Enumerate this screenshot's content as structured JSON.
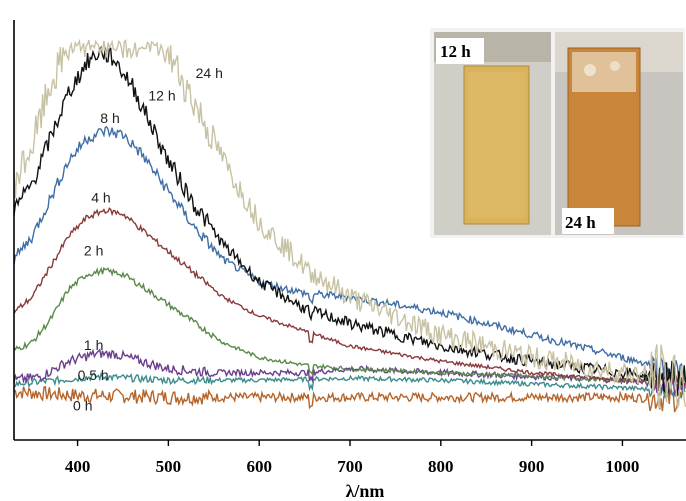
{
  "chart_data": {
    "type": "line",
    "title": "",
    "xlabel": "λ/nm",
    "ylabel": "",
    "xlim": [
      330,
      1070
    ],
    "ylim": [
      0,
      1
    ],
    "x_ticks": [
      400,
      500,
      600,
      700,
      800,
      900,
      1000
    ],
    "grid": false,
    "legend": "none",
    "series": [
      {
        "name": "0 h",
        "color": "#b5652b",
        "noise": 0.012,
        "points": [
          [
            330,
            0.07
          ],
          [
            360,
            0.065
          ],
          [
            400,
            0.06
          ],
          [
            450,
            0.058
          ],
          [
            500,
            0.055
          ],
          [
            600,
            0.055
          ],
          [
            700,
            0.055
          ],
          [
            800,
            0.055
          ],
          [
            900,
            0.055
          ],
          [
            1000,
            0.055
          ],
          [
            1070,
            0.05
          ]
        ]
      },
      {
        "name": "0.5 h",
        "color": "#3d8c8c",
        "noise": 0.006,
        "points": [
          [
            330,
            0.09
          ],
          [
            380,
            0.1
          ],
          [
            420,
            0.11
          ],
          [
            460,
            0.105
          ],
          [
            500,
            0.1
          ],
          [
            600,
            0.1
          ],
          [
            700,
            0.105
          ],
          [
            800,
            0.1
          ],
          [
            900,
            0.09
          ],
          [
            1000,
            0.08
          ],
          [
            1070,
            0.07
          ]
        ]
      },
      {
        "name": "1 h",
        "color": "#6a3e8c",
        "noise": 0.008,
        "points": [
          [
            330,
            0.1
          ],
          [
            360,
            0.11
          ],
          [
            390,
            0.15
          ],
          [
            420,
            0.17
          ],
          [
            440,
            0.17
          ],
          [
            470,
            0.15
          ],
          [
            500,
            0.13
          ],
          [
            550,
            0.12
          ],
          [
            600,
            0.12
          ],
          [
            650,
            0.12
          ],
          [
            700,
            0.13
          ],
          [
            800,
            0.12
          ],
          [
            900,
            0.11
          ],
          [
            1000,
            0.1
          ],
          [
            1070,
            0.08
          ]
        ]
      },
      {
        "name": "2 h",
        "color": "#5a8a4a",
        "noise": 0.005,
        "points": [
          [
            330,
            0.18
          ],
          [
            350,
            0.2
          ],
          [
            370,
            0.26
          ],
          [
            390,
            0.34
          ],
          [
            410,
            0.38
          ],
          [
            430,
            0.39
          ],
          [
            450,
            0.38
          ],
          [
            470,
            0.35
          ],
          [
            500,
            0.3
          ],
          [
            530,
            0.25
          ],
          [
            560,
            0.2
          ],
          [
            600,
            0.16
          ],
          [
            650,
            0.14
          ],
          [
            700,
            0.13
          ],
          [
            800,
            0.12
          ],
          [
            900,
            0.11
          ],
          [
            1000,
            0.1
          ],
          [
            1070,
            0.1
          ]
        ]
      },
      {
        "name": "4 h",
        "color": "#8b3a3a",
        "noise": 0.005,
        "points": [
          [
            330,
            0.28
          ],
          [
            350,
            0.32
          ],
          [
            370,
            0.4
          ],
          [
            390,
            0.48
          ],
          [
            410,
            0.53
          ],
          [
            430,
            0.55
          ],
          [
            450,
            0.54
          ],
          [
            470,
            0.5
          ],
          [
            500,
            0.44
          ],
          [
            530,
            0.38
          ],
          [
            560,
            0.32
          ],
          [
            600,
            0.27
          ],
          [
            650,
            0.23
          ],
          [
            700,
            0.19
          ],
          [
            800,
            0.15
          ],
          [
            900,
            0.12
          ],
          [
            1000,
            0.1
          ],
          [
            1070,
            0.1
          ]
        ]
      },
      {
        "name": "8 h",
        "color": "#3f6ea6",
        "noise": 0.01,
        "points": [
          [
            330,
            0.42
          ],
          [
            350,
            0.48
          ],
          [
            370,
            0.58
          ],
          [
            390,
            0.68
          ],
          [
            410,
            0.74
          ],
          [
            430,
            0.76
          ],
          [
            450,
            0.75
          ],
          [
            470,
            0.7
          ],
          [
            500,
            0.6
          ],
          [
            530,
            0.5
          ],
          [
            560,
            0.42
          ],
          [
            600,
            0.36
          ],
          [
            650,
            0.33
          ],
          [
            700,
            0.32
          ],
          [
            800,
            0.28
          ],
          [
            900,
            0.22
          ],
          [
            1000,
            0.16
          ],
          [
            1070,
            0.12
          ]
        ]
      },
      {
        "name": "12 h",
        "color": "#111111",
        "noise": 0.015,
        "points": [
          [
            330,
            0.55
          ],
          [
            350,
            0.62
          ],
          [
            370,
            0.74
          ],
          [
            390,
            0.86
          ],
          [
            410,
            0.94
          ],
          [
            425,
            0.97
          ],
          [
            440,
            0.95
          ],
          [
            460,
            0.88
          ],
          [
            480,
            0.78
          ],
          [
            500,
            0.68
          ],
          [
            530,
            0.56
          ],
          [
            560,
            0.46
          ],
          [
            600,
            0.36
          ],
          [
            650,
            0.29
          ],
          [
            700,
            0.25
          ],
          [
            800,
            0.19
          ],
          [
            900,
            0.15
          ],
          [
            1000,
            0.12
          ],
          [
            1070,
            0.1
          ]
        ]
      },
      {
        "name": "24 h",
        "color": "#c8c2a4",
        "noise": 0.03,
        "points": [
          [
            330,
            0.62
          ],
          [
            350,
            0.72
          ],
          [
            370,
            0.88
          ],
          [
            390,
            0.98
          ],
          [
            410,
            1.0
          ],
          [
            430,
            1.0
          ],
          [
            450,
            1.0
          ],
          [
            470,
            1.0
          ],
          [
            490,
            1.0
          ],
          [
            510,
            0.92
          ],
          [
            540,
            0.78
          ],
          [
            570,
            0.64
          ],
          [
            600,
            0.52
          ],
          [
            650,
            0.4
          ],
          [
            700,
            0.32
          ],
          [
            800,
            0.22
          ],
          [
            900,
            0.16
          ],
          [
            1000,
            0.12
          ],
          [
            1070,
            0.1
          ]
        ]
      }
    ],
    "annotations": [
      {
        "text": "24 h",
        "x": 530,
        "y": 0.9
      },
      {
        "text": "12 h",
        "x": 478,
        "y": 0.84
      },
      {
        "text": "8 h",
        "x": 425,
        "y": 0.78
      },
      {
        "text": "4 h",
        "x": 415,
        "y": 0.57
      },
      {
        "text": "2 h",
        "x": 407,
        "y": 0.43
      },
      {
        "text": "1 h",
        "x": 407,
        "y": 0.18
      },
      {
        "text": "0.5 h",
        "x": 400,
        "y": 0.1
      },
      {
        "text": "0 h",
        "x": 395,
        "y": 0.02
      }
    ]
  },
  "inset": {
    "labels": [
      "12 h",
      "24 h"
    ]
  }
}
